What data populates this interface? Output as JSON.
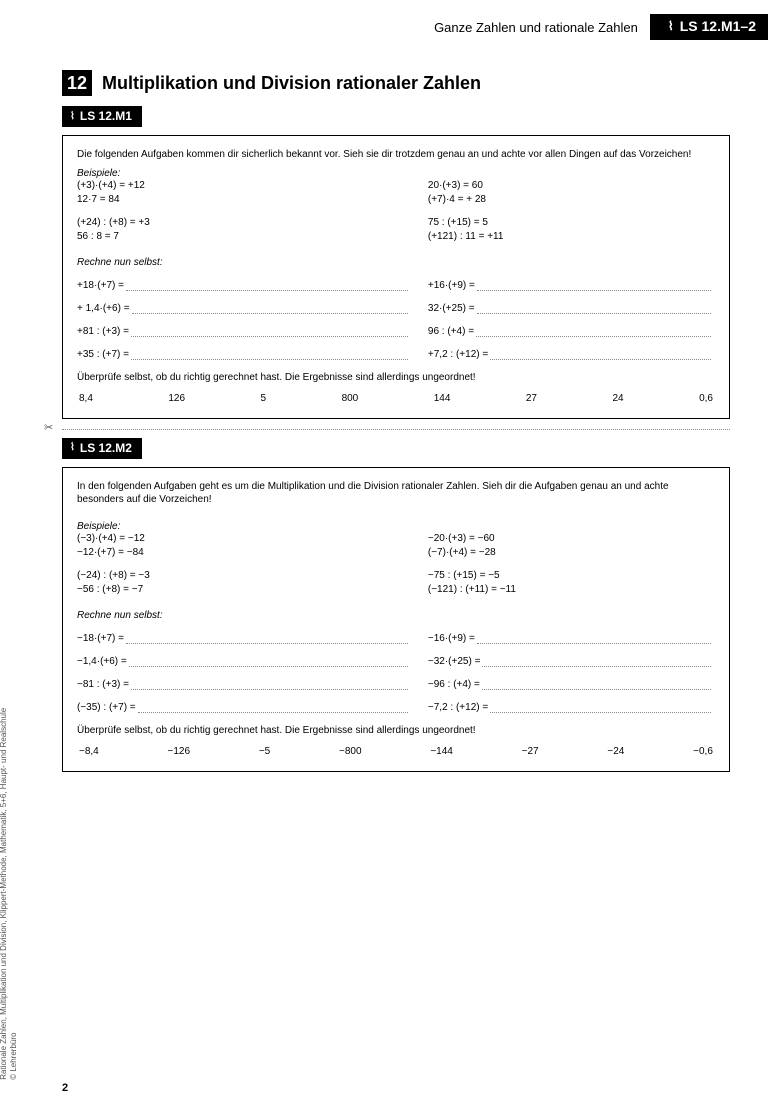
{
  "header": {
    "chapter": "Ganze Zahlen und rationale Zahlen",
    "badge": "LS 12.M1–2"
  },
  "title": {
    "number": "12",
    "text": "Multiplikation und Division rationaler Zahlen"
  },
  "side_citation": {
    "line1": "Rationale Zahlen, Multiplikation und Division, Klippert-Methode, Mathematik, 5+6, Haupt- und Realschule",
    "line2": "© Lehrerbüro"
  },
  "page_number": "2",
  "section1": {
    "badge": "LS 12.M1",
    "intro": "Die folgenden Aufgaben kommen dir sicherlich bekannt vor. Sieh sie dir trotzdem genau an und achte vor allen Dingen auf das Vorzeichen!",
    "beispiele_label": "Beispiele:",
    "examples_left": [
      "(+3)·(+4) = +12",
      "12·7 = 84",
      "",
      "(+24) : (+8) = +3",
      "56 : 8 = 7"
    ],
    "examples_right": [
      "20·(+3) = 60",
      "(+7)·4 = + 28",
      "",
      "75 : (+15) = 5",
      "(+121) : 11 = +11"
    ],
    "rechne_label": "Rechne nun selbst:",
    "problems": [
      {
        "l": "+18·(+7) =",
        "r": "+16·(+9) ="
      },
      {
        "l": "+ 1,4·(+6) =",
        "r": "32·(+25) ="
      },
      {
        "l": "+81 : (+3) =",
        "r": "96 : (+4) ="
      },
      {
        "l": "+35 : (+7) =",
        "r": "+7,2 : (+12) ="
      }
    ],
    "check": "Überprüfe selbst, ob du richtig gerechnet hast. Die Ergebnisse sind allerdings ungeordnet!",
    "answers": [
      "8,4",
      "126",
      "5",
      "800",
      "144",
      "27",
      "24",
      "0,6"
    ]
  },
  "section2": {
    "badge": "LS 12.M2",
    "intro": "In den folgenden Aufgaben geht es um die Multiplikation und die Division rationaler Zahlen. Sieh dir die Aufgaben genau an und achte besonders auf die Vorzeichen!",
    "beispiele_label": "Beispiele:",
    "examples_left": [
      "(−3)·(+4) = −12",
      "−12·(+7) = −84",
      "",
      "(−24) : (+8) = −3",
      "−56 : (+8) = −7"
    ],
    "examples_right": [
      "−20·(+3) = −60",
      "(−7)·(+4) = −28",
      "",
      "−75 : (+15) = −5",
      "(−121) : (+11) = −11"
    ],
    "rechne_label": "Rechne nun selbst:",
    "problems": [
      {
        "l": "−18·(+7) =",
        "r": "−16·(+9) ="
      },
      {
        "l": "−1,4·(+6) =",
        "r": "−32·(+25) ="
      },
      {
        "l": "−81 : (+3) =",
        "r": "−96 : (+4) ="
      },
      {
        "l": "(−35) : (+7) =",
        "r": "−7,2 : (+12) ="
      }
    ],
    "check": "Überprüfe selbst, ob du richtig gerechnet hast. Die Ergebnisse sind allerdings ungeordnet!",
    "answers": [
      "−8,4",
      "−126",
      "−5",
      "−800",
      "−144",
      "−27",
      "−24",
      "−0,6"
    ]
  }
}
